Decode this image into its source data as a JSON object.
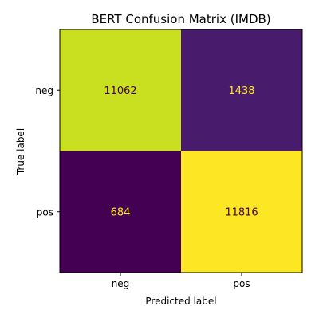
{
  "chart_data": {
    "type": "heatmap",
    "title": "BERT Confusion Matrix (IMDB)",
    "xlabel": "Predicted label",
    "ylabel": "True label",
    "x_categories": [
      "neg",
      "pos"
    ],
    "y_categories": [
      "neg",
      "pos"
    ],
    "values": [
      [
        11062,
        1438
      ],
      [
        684,
        11816
      ]
    ],
    "colormap": "viridis",
    "grid": false,
    "colors": {
      "dark_text": "#440154",
      "light_text": "#fde725",
      "cell_neg_neg": "#c8e020",
      "cell_neg_pos": "#481b6d",
      "cell_pos_neg": "#440154",
      "cell_pos_pos": "#fde725"
    }
  }
}
